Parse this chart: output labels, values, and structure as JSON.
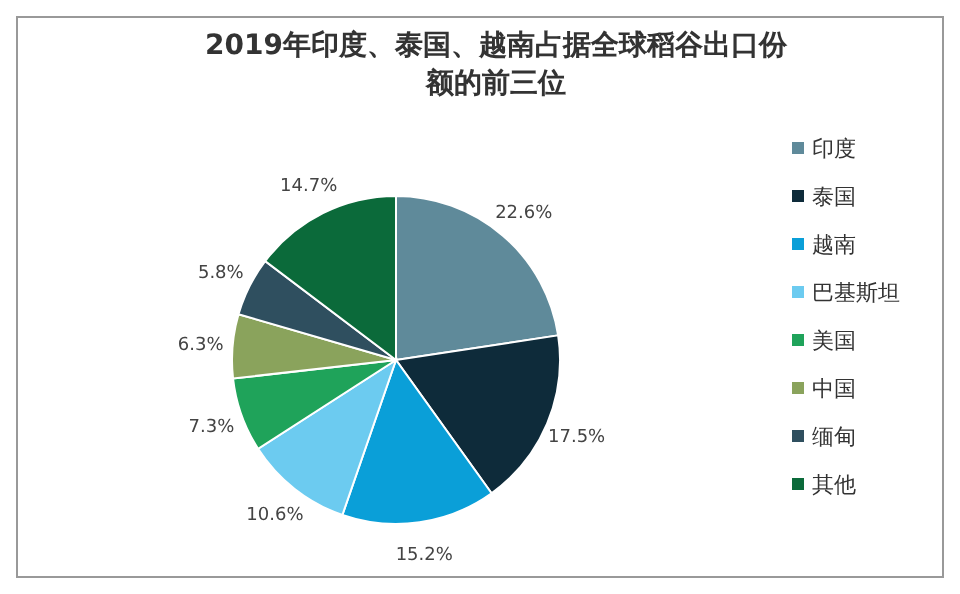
{
  "chart_data": {
    "type": "pie",
    "title": "2019年印度、泰国、越南占据全球稻谷出口份额的前三位",
    "categories": [
      "印度",
      "泰国",
      "越南",
      "巴基斯坦",
      "美国",
      "中国",
      "缅甸",
      "其他"
    ],
    "values": [
      22.6,
      17.5,
      15.2,
      10.6,
      7.3,
      6.3,
      5.8,
      14.7
    ],
    "colors": [
      "#5f8a9a",
      "#0e2b3a",
      "#0a9fd8",
      "#6ccbf0",
      "#1fa35a",
      "#8aa35c",
      "#2f4f5f",
      "#0b6a3a"
    ],
    "value_labels": [
      "22.6%",
      "17.5%",
      "15.2%",
      "10.6%",
      "7.3%",
      "6.3%",
      "5.8%",
      "14.7%"
    ],
    "legend": "right"
  }
}
